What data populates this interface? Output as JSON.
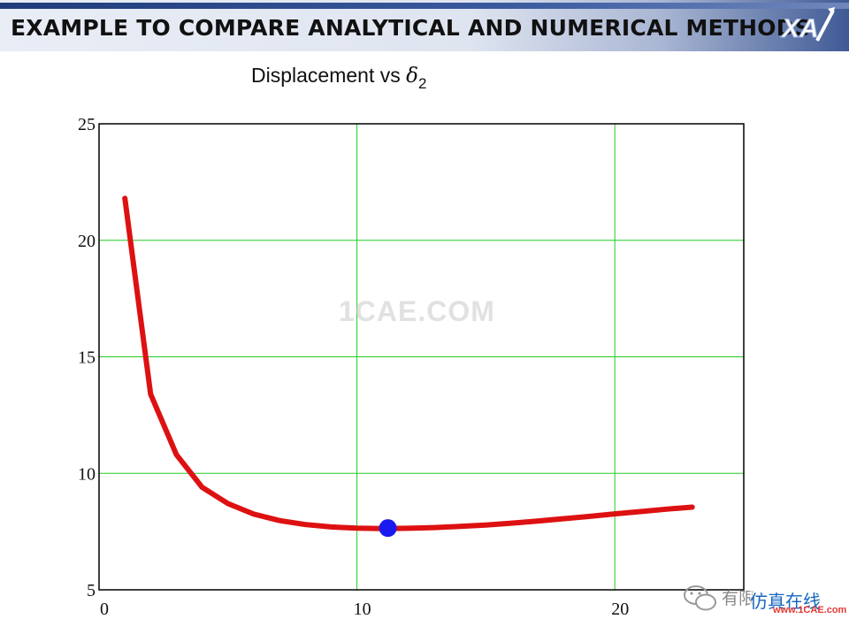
{
  "header": {
    "title": "EXAMPLE TO COMPARE ANALYTICAL AND NUMERICAL METHODS"
  },
  "chart_data": {
    "type": "line",
    "title_prefix": "Displacement vs ",
    "title_symbol": "δ",
    "title_subscript": "2",
    "xlabel": "",
    "ylabel": "",
    "xlim": [
      0,
      25
    ],
    "ylim": [
      5,
      25
    ],
    "x_ticks": [
      0,
      10,
      20
    ],
    "y_ticks": [
      5,
      10,
      15,
      20,
      25
    ],
    "grid": true,
    "grid_color": "#22cc22",
    "series": [
      {
        "color": "#dd1111",
        "x": [
          1,
          2,
          3,
          4,
          5,
          6,
          7,
          8,
          9,
          10,
          11,
          12,
          13,
          14,
          15,
          16,
          17,
          18,
          19,
          20,
          21,
          22,
          23
        ],
        "y": [
          21.8,
          13.4,
          10.8,
          9.4,
          8.7,
          8.25,
          7.97,
          7.8,
          7.7,
          7.65,
          7.63,
          7.64,
          7.67,
          7.72,
          7.78,
          7.86,
          7.95,
          8.05,
          8.15,
          8.26,
          8.36,
          8.46,
          8.55
        ]
      }
    ],
    "highlight_point": {
      "x": 11.2,
      "y": 7.65,
      "color": "#1a1aee"
    }
  },
  "watermarks": {
    "center": "1CAE.COM",
    "cn_left": "有限",
    "cn_right": "仿真在线",
    "url": "www.1CAE.com"
  }
}
